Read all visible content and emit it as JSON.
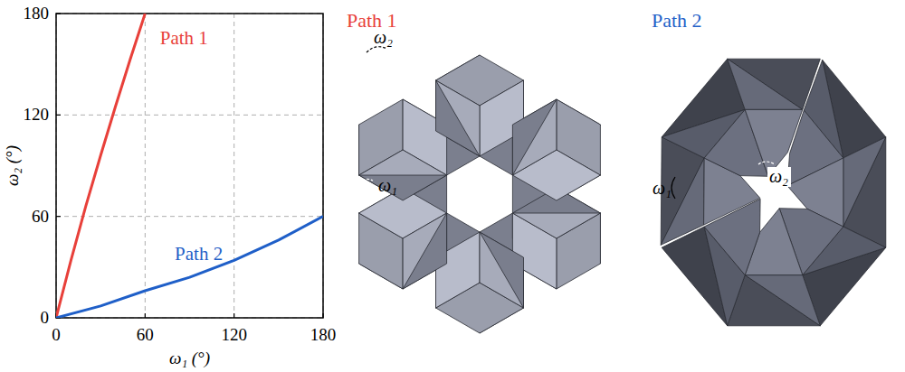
{
  "chart_data": {
    "type": "line",
    "x_label": "ω₁ (°)",
    "y_label": "ω₂ (°)",
    "series": [
      {
        "name": "Path 1",
        "color": "#e8403a",
        "x": [
          0,
          10,
          20,
          30,
          40,
          50,
          60
        ],
        "values": [
          0,
          34,
          66,
          96,
          125,
          153,
          180
        ]
      },
      {
        "name": "Path 2",
        "color": "#1f5fc8",
        "x": [
          0,
          30,
          60,
          90,
          120,
          150,
          180
        ],
        "values": [
          0,
          7,
          16,
          24,
          34,
          46,
          60
        ]
      }
    ],
    "xlim": [
      0,
      180
    ],
    "xticks": [
      0,
      60,
      120,
      180
    ],
    "ylim": [
      0,
      180
    ],
    "yticks": [
      0,
      60,
      120,
      180
    ],
    "grid": true
  },
  "diagrams": [
    {
      "title": "Path 1",
      "color": "#e8403a",
      "labels": [
        "ω₁",
        "ω₂"
      ]
    },
    {
      "title": "Path 2",
      "color": "#1f5fc8",
      "labels": [
        "ω₁",
        "ω₂"
      ]
    }
  ]
}
